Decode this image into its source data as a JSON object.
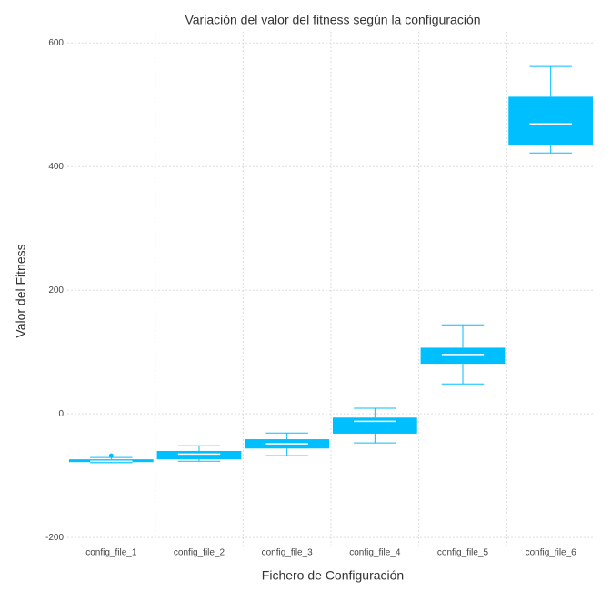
{
  "chart_data": {
    "type": "box",
    "title": "Variación del valor del fitness según la configuración",
    "x_label": "Fichero de Configuración",
    "y_label": "Valor del Fitness",
    "categories": [
      "config_file_1",
      "config_file_2",
      "config_file_3",
      "config_file_4",
      "config_file_5",
      "config_file_6"
    ],
    "min": [
      -79,
      -76.5,
      -67.6,
      -47,
      48.5,
      422
    ],
    "q1": [
      -78,
      -73.5,
      -56,
      -32,
      81,
      435
    ],
    "median": [
      -76.5,
      -65,
      -48.5,
      -12,
      96,
      469
    ],
    "q3": [
      -73.5,
      -60,
      -41,
      -6,
      107,
      513
    ],
    "max": [
      -70.6,
      -51.5,
      -31,
      9,
      144,
      562
    ],
    "outliers": [
      [
        -67.6
      ],
      [],
      [],
      [],
      [],
      []
    ],
    "color": "#00bfff",
    "ylim": [
      -213,
      618
    ],
    "yticks": [
      -200,
      0,
      200,
      400,
      600
    ],
    "grid": true
  }
}
